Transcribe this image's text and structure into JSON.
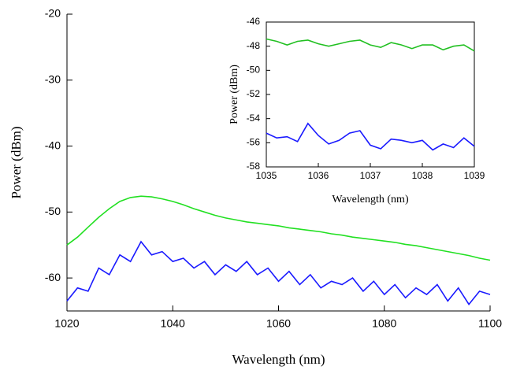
{
  "chart_data": [
    {
      "type": "line",
      "x_label": "Wavelength (nm)",
      "y_label": "Power (dBm)",
      "x": [
        1020,
        1022,
        1024,
        1026,
        1028,
        1030,
        1032,
        1034,
        1036,
        1038,
        1040,
        1042,
        1044,
        1046,
        1048,
        1050,
        1052,
        1054,
        1056,
        1058,
        1060,
        1062,
        1064,
        1066,
        1068,
        1070,
        1072,
        1074,
        1076,
        1078,
        1080,
        1082,
        1084,
        1086,
        1088,
        1090,
        1092,
        1094,
        1096,
        1098,
        1100
      ],
      "series": [
        {
          "color": "#22e022",
          "values": [
            -55,
            -53.8,
            -52.3,
            -50.8,
            -49.5,
            -48.4,
            -47.8,
            -47.6,
            -47.7,
            -48.0,
            -48.4,
            -48.9,
            -49.5,
            -50.0,
            -50.5,
            -50.9,
            -51.2,
            -51.5,
            -51.7,
            -51.9,
            -52.1,
            -52.4,
            -52.6,
            -52.8,
            -53.0,
            -53.3,
            -53.5,
            -53.8,
            -54.0,
            -54.2,
            -54.4,
            -54.6,
            -54.9,
            -55.1,
            -55.4,
            -55.7,
            -56.0,
            -56.3,
            -56.6,
            -57.0,
            -57.3
          ]
        },
        {
          "color": "#1a1aff",
          "values": [
            -63.5,
            -61.5,
            -62,
            -58.5,
            -59.5,
            -56.5,
            -57.5,
            -54.5,
            -56.5,
            -56,
            -57.5,
            -57,
            -58.5,
            -57.5,
            -59.5,
            -58,
            -59,
            -57.5,
            -59.5,
            -58.5,
            -60.5,
            -59,
            -61,
            -59.5,
            -61.5,
            -60.5,
            -61,
            -60,
            -62,
            -60.5,
            -62.5,
            -61,
            -63,
            -61.5,
            -62.5,
            -61,
            -63.5,
            -61.5,
            -64,
            -62,
            -62.5
          ]
        }
      ],
      "xlim": [
        1020,
        1100
      ],
      "ylim": [
        -65,
        -20
      ],
      "xticks": [
        1020,
        1040,
        1060,
        1080,
        1100
      ],
      "yticks": [
        -60,
        -50,
        -40,
        -30,
        -20
      ]
    },
    {
      "type": "line",
      "x_label": "Wavelength (nm)",
      "y_label": "Power (dBm)",
      "x": [
        1035,
        1035.2,
        1035.4,
        1035.6,
        1035.8,
        1036,
        1036.2,
        1036.4,
        1036.6,
        1036.8,
        1037,
        1037.2,
        1037.4,
        1037.6,
        1037.8,
        1038,
        1038.2,
        1038.4,
        1038.6,
        1038.8,
        1039
      ],
      "series": [
        {
          "color": "#22c022",
          "values": [
            -47.4,
            -47.6,
            -47.9,
            -47.6,
            -47.5,
            -47.8,
            -48.0,
            -47.8,
            -47.6,
            -47.5,
            -47.9,
            -48.1,
            -47.7,
            -47.9,
            -48.2,
            -47.9,
            -47.9,
            -48.3,
            -48.0,
            -47.9,
            -48.4
          ]
        },
        {
          "color": "#1a1aff",
          "values": [
            -55.2,
            -55.6,
            -55.5,
            -55.9,
            -54.4,
            -55.4,
            -56.1,
            -55.8,
            -55.2,
            -55.0,
            -56.2,
            -56.5,
            -55.7,
            -55.8,
            -56.0,
            -55.8,
            -56.6,
            -56.1,
            -56.4,
            -55.6,
            -56.3
          ]
        }
      ],
      "xlim": [
        1035,
        1039
      ],
      "ylim": [
        -58,
        -46
      ],
      "xticks": [
        1035,
        1036,
        1037,
        1038,
        1039
      ],
      "yticks": [
        -58,
        -56,
        -54,
        -52,
        -50,
        -48,
        -46
      ]
    }
  ]
}
